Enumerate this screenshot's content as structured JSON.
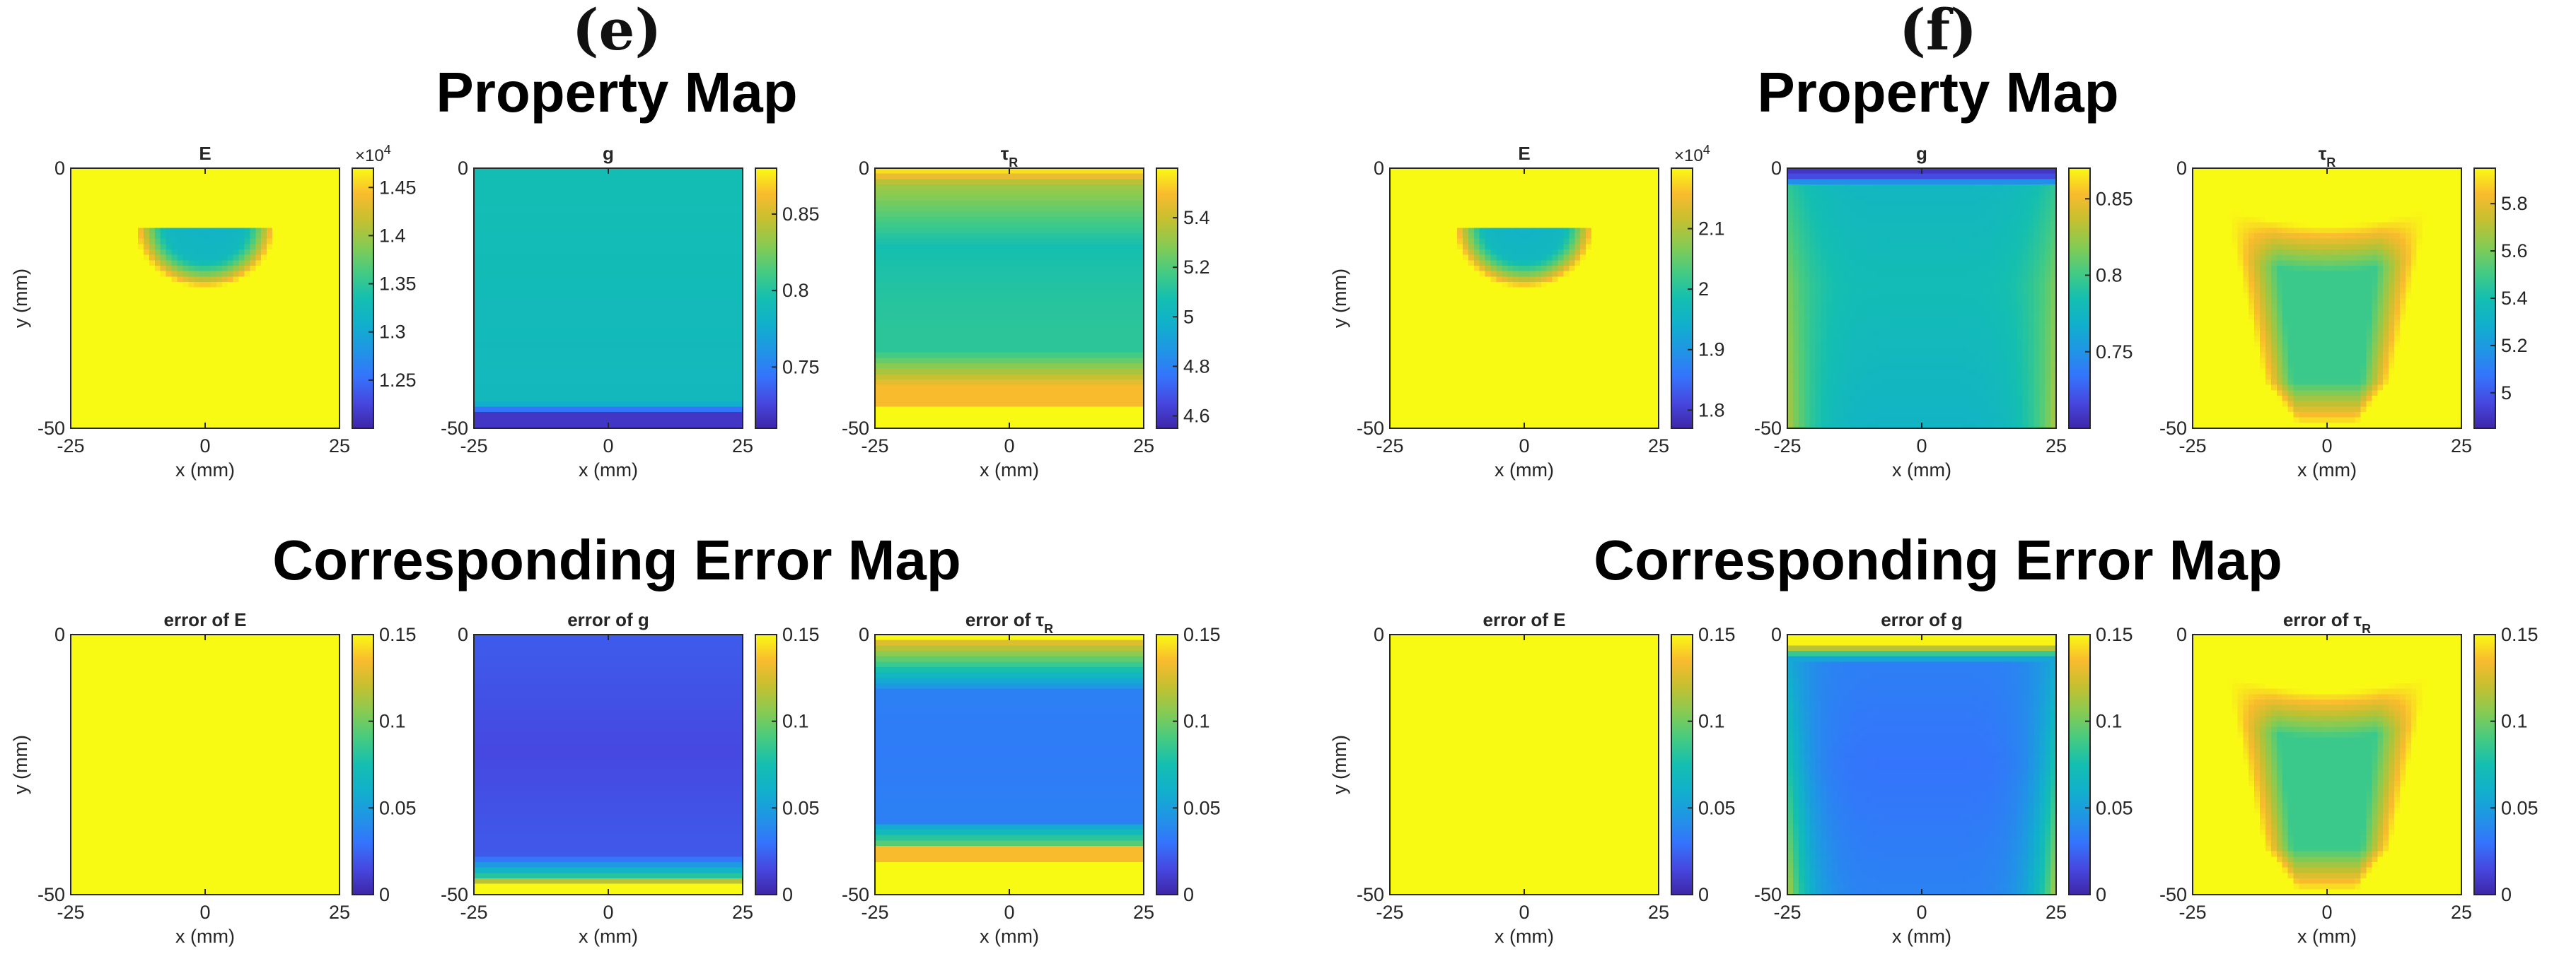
{
  "figure": {
    "panels": [
      {
        "letter": "(e)",
        "property_title": "Property Map",
        "error_title": "Corresponding Error Map"
      },
      {
        "letter": "(f)",
        "property_title": "Property Map",
        "error_title": "Corresponding Error Map"
      }
    ]
  },
  "chart_data": [
    {
      "type": "heatmap",
      "panel": "e",
      "row": "property",
      "title": "E",
      "title_sub": "",
      "xlabel": "x (mm)",
      "ylabel": "y (mm)",
      "x_ticks": [
        "-25",
        "0",
        "25"
      ],
      "y_ticks": [
        "0",
        "-50"
      ],
      "xlim": [
        -25,
        25
      ],
      "ylim": [
        -50,
        0
      ],
      "colormap": "parula",
      "field": "inclusion",
      "clim": [
        1.2,
        1.47
      ],
      "colorbar_ticks": [
        1.25,
        1.3,
        1.35,
        1.4,
        1.45
      ],
      "colorbar_labels": [
        "1.25",
        "1.3",
        "1.35",
        "1.4",
        "1.45"
      ],
      "colorbar_exponent": "×10",
      "colorbar_exponent_power": "4"
    },
    {
      "type": "heatmap",
      "panel": "e",
      "row": "property",
      "title": "g",
      "title_sub": "",
      "xlabel": "x (mm)",
      "ylabel": "",
      "x_ticks": [
        "-25",
        "0",
        "25"
      ],
      "y_ticks": [
        "0",
        "-50"
      ],
      "xlim": [
        -25,
        25
      ],
      "ylim": [
        -50,
        0
      ],
      "colormap": "parula",
      "field": "bottom_low",
      "clim": [
        0.71,
        0.88
      ],
      "colorbar_ticks": [
        0.75,
        0.8,
        0.85
      ],
      "colorbar_labels": [
        "0.75",
        "0.8",
        "0.85"
      ]
    },
    {
      "type": "heatmap",
      "panel": "e",
      "row": "property",
      "title": "τ",
      "title_sub": "R",
      "xlabel": "x (mm)",
      "ylabel": "",
      "x_ticks": [
        "-25",
        "0",
        "25"
      ],
      "y_ticks": [
        "0",
        "-50"
      ],
      "xlim": [
        -25,
        25
      ],
      "ylim": [
        -50,
        0
      ],
      "colormap": "parula",
      "field": "top_bottom_high",
      "clim": [
        4.55,
        5.6
      ],
      "colorbar_ticks": [
        4.6,
        4.8,
        5,
        5.2,
        5.4
      ],
      "colorbar_labels": [
        "4.6",
        "4.8",
        "5",
        "5.2",
        "5.4"
      ]
    },
    {
      "type": "heatmap",
      "panel": "e",
      "row": "error",
      "title": "error of E",
      "title_sub": "",
      "xlabel": "x (mm)",
      "ylabel": "y (mm)",
      "x_ticks": [
        "-25",
        "0",
        "25"
      ],
      "y_ticks": [
        "0",
        "-50"
      ],
      "xlim": [
        -25,
        25
      ],
      "ylim": [
        -50,
        0
      ],
      "colormap": "parula",
      "field": "uniform_high",
      "clim": [
        0,
        0.15
      ],
      "colorbar_ticks": [
        0,
        0.05,
        0.1,
        0.15
      ],
      "colorbar_labels": [
        "0",
        "0.05",
        "0.1",
        "0.15"
      ]
    },
    {
      "type": "heatmap",
      "panel": "e",
      "row": "error",
      "title": "error of g",
      "title_sub": "",
      "xlabel": "x (mm)",
      "ylabel": "",
      "x_ticks": [
        "-25",
        "0",
        "25"
      ],
      "y_ticks": [
        "0",
        "-50"
      ],
      "xlim": [
        -25,
        25
      ],
      "ylim": [
        -50,
        0
      ],
      "colormap": "parula",
      "field": "error_bottom_band",
      "clim": [
        0,
        0.15
      ],
      "colorbar_ticks": [
        0,
        0.05,
        0.1,
        0.15
      ],
      "colorbar_labels": [
        "0",
        "0.05",
        "0.1",
        "0.15"
      ]
    },
    {
      "type": "heatmap",
      "panel": "e",
      "row": "error",
      "title": "error of τ",
      "title_sub": "R",
      "xlabel": "x (mm)",
      "ylabel": "",
      "x_ticks": [
        "-25",
        "0",
        "25"
      ],
      "y_ticks": [
        "0",
        "-50"
      ],
      "xlim": [
        -25,
        25
      ],
      "ylim": [
        -50,
        0
      ],
      "colormap": "parula",
      "field": "error_top_bottom",
      "clim": [
        0,
        0.15
      ],
      "colorbar_ticks": [
        0,
        0.05,
        0.1,
        0.15
      ],
      "colorbar_labels": [
        "0",
        "0.05",
        "0.1",
        "0.15"
      ]
    },
    {
      "type": "heatmap",
      "panel": "f",
      "row": "property",
      "title": "E",
      "title_sub": "",
      "xlabel": "x (mm)",
      "ylabel": "y (mm)",
      "x_ticks": [
        "-25",
        "0",
        "25"
      ],
      "y_ticks": [
        "0",
        "-50"
      ],
      "xlim": [
        -25,
        25
      ],
      "ylim": [
        -50,
        0
      ],
      "colormap": "parula",
      "field": "inclusion",
      "clim": [
        1.77,
        2.2
      ],
      "colorbar_ticks": [
        1.8,
        1.9,
        2,
        2.1
      ],
      "colorbar_labels": [
        "1.8",
        "1.9",
        "2",
        "2.1"
      ],
      "colorbar_exponent": "×10",
      "colorbar_exponent_power": "4"
    },
    {
      "type": "heatmap",
      "panel": "f",
      "row": "property",
      "title": "g",
      "title_sub": "",
      "xlabel": "x (mm)",
      "ylabel": "",
      "x_ticks": [
        "-25",
        "0",
        "25"
      ],
      "y_ticks": [
        "0",
        "-50"
      ],
      "xlim": [
        -25,
        25
      ],
      "ylim": [
        -50,
        0
      ],
      "colormap": "parula",
      "field": "top_low_spread",
      "clim": [
        0.7,
        0.87
      ],
      "colorbar_ticks": [
        0.75,
        0.8,
        0.85
      ],
      "colorbar_labels": [
        "0.75",
        "0.8",
        "0.85"
      ]
    },
    {
      "type": "heatmap",
      "panel": "f",
      "row": "property",
      "title": "τ",
      "title_sub": "R",
      "xlabel": "x (mm)",
      "ylabel": "",
      "x_ticks": [
        "-25",
        "0",
        "25"
      ],
      "y_ticks": [
        "0",
        "-50"
      ],
      "xlim": [
        -25,
        25
      ],
      "ylim": [
        -50,
        0
      ],
      "colormap": "parula",
      "field": "cup_high",
      "clim": [
        4.85,
        5.95
      ],
      "colorbar_ticks": [
        5,
        5.2,
        5.4,
        5.6,
        5.8
      ],
      "colorbar_labels": [
        "5",
        "5.2",
        "5.4",
        "5.6",
        "5.8"
      ]
    },
    {
      "type": "heatmap",
      "panel": "f",
      "row": "error",
      "title": "error of E",
      "title_sub": "",
      "xlabel": "x (mm)",
      "ylabel": "y (mm)",
      "x_ticks": [
        "-25",
        "0",
        "25"
      ],
      "y_ticks": [
        "0",
        "-50"
      ],
      "xlim": [
        -25,
        25
      ],
      "ylim": [
        -50,
        0
      ],
      "colormap": "parula",
      "field": "uniform_high",
      "clim": [
        0,
        0.15
      ],
      "colorbar_ticks": [
        0,
        0.05,
        0.1,
        0.15
      ],
      "colorbar_labels": [
        "0",
        "0.05",
        "0.1",
        "0.15"
      ]
    },
    {
      "type": "heatmap",
      "panel": "f",
      "row": "error",
      "title": "error of g",
      "title_sub": "",
      "xlabel": "x (mm)",
      "ylabel": "",
      "x_ticks": [
        "-25",
        "0",
        "25"
      ],
      "y_ticks": [
        "0",
        "-50"
      ],
      "xlim": [
        -25,
        25
      ],
      "ylim": [
        -50,
        0
      ],
      "colormap": "parula",
      "field": "error_top_spread",
      "clim": [
        0,
        0.15
      ],
      "colorbar_ticks": [
        0,
        0.05,
        0.1,
        0.15
      ],
      "colorbar_labels": [
        "0",
        "0.05",
        "0.1",
        "0.15"
      ]
    },
    {
      "type": "heatmap",
      "panel": "f",
      "row": "error",
      "title": "error of τ",
      "title_sub": "R",
      "xlabel": "x (mm)",
      "ylabel": "",
      "x_ticks": [
        "-25",
        "0",
        "25"
      ],
      "y_ticks": [
        "0",
        "-50"
      ],
      "xlim": [
        -25,
        25
      ],
      "ylim": [
        -50,
        0
      ],
      "colormap": "parula",
      "field": "cup_high",
      "clim": [
        0,
        0.15
      ],
      "colorbar_ticks": [
        0,
        0.05,
        0.1,
        0.15
      ],
      "colorbar_labels": [
        "0",
        "0.05",
        "0.1",
        "0.15"
      ]
    }
  ]
}
